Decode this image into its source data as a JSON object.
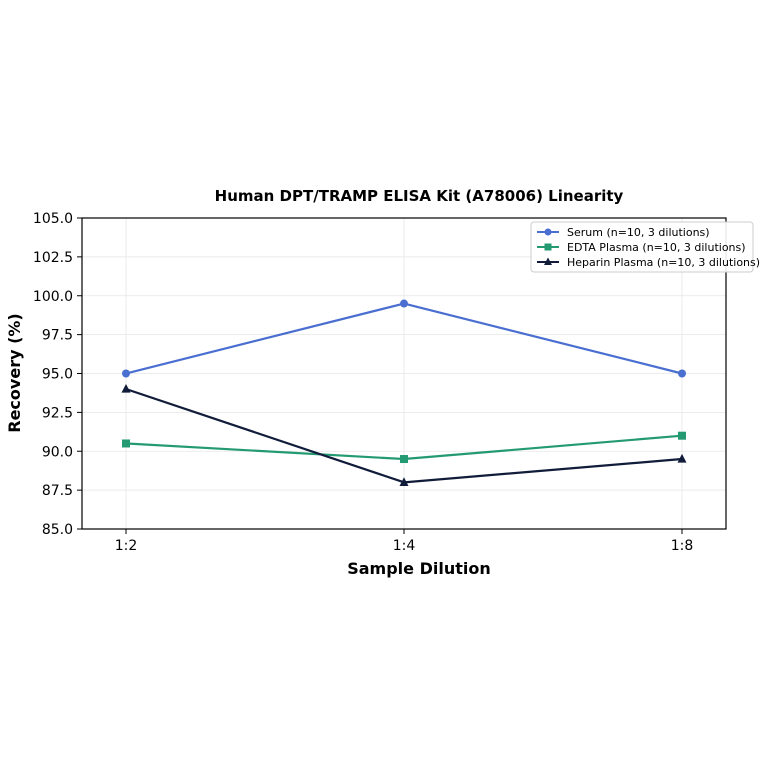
{
  "chart_data": {
    "type": "line",
    "title": "Human DPT/TRAMP ELISA Kit (A78006) Linearity",
    "xlabel": "Sample Dilution",
    "ylabel": "Recovery (%)",
    "categories": [
      "1:2",
      "1:4",
      "1:8"
    ],
    "ylim": [
      85.0,
      105.0
    ],
    "yticks": [
      "85.0",
      "87.5",
      "90.0",
      "92.5",
      "95.0",
      "97.5",
      "100.0",
      "102.5",
      "105.0"
    ],
    "grid": true,
    "legend_position": "top-right",
    "series": [
      {
        "name": "Serum (n=10, 3 dilutions)",
        "values": [
          95.0,
          99.5,
          95.0
        ],
        "color": "#4a6fd1",
        "marker": "circle"
      },
      {
        "name": "EDTA Plasma (n=10, 3 dilutions)",
        "values": [
          90.5,
          89.5,
          91.0
        ],
        "color": "#239a72",
        "marker": "square"
      },
      {
        "name": "Heparin Plasma (n=10, 3 dilutions)",
        "values": [
          94.0,
          88.0,
          89.5
        ],
        "color": "#111c3a",
        "marker": "triangle"
      }
    ]
  }
}
